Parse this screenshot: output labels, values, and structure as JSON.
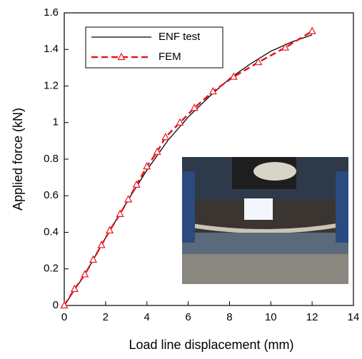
{
  "chart_data": {
    "type": "line",
    "xlabel": "Load line displacement (mm)",
    "ylabel": "Applied force (kN)",
    "xlim": [
      0,
      14
    ],
    "xticks": [
      0,
      2,
      4,
      6,
      8,
      10,
      12,
      14
    ],
    "ylim": [
      0,
      1.6
    ],
    "yticks": [
      0,
      0.2,
      0.4,
      0.6,
      0.8,
      1,
      1.2,
      1.4,
      1.6
    ],
    "legend": "upper left",
    "series": [
      {
        "name": "ENF test",
        "color": "#000000",
        "line_style": "solid",
        "marker": "none",
        "x": [
          0,
          1,
          2,
          3,
          4,
          5,
          6,
          7,
          8,
          9,
          10,
          11,
          12
        ],
        "values": [
          0,
          0.17,
          0.37,
          0.56,
          0.74,
          0.9,
          1.03,
          1.14,
          1.24,
          1.32,
          1.39,
          1.44,
          1.48
        ]
      },
      {
        "name": "FEM",
        "color": "#e8141b",
        "line_style": "dashed",
        "marker": "triangle",
        "x": [
          0,
          0.5,
          1,
          1.4,
          1.8,
          2.2,
          2.7,
          3.1,
          3.5,
          4,
          4.5,
          4.9,
          5.6,
          6.3,
          7.2,
          8.2,
          9.4,
          10.7,
          12
        ],
        "values": [
          0,
          0.09,
          0.17,
          0.25,
          0.33,
          0.41,
          0.5,
          0.58,
          0.66,
          0.76,
          0.84,
          0.92,
          1.0,
          1.08,
          1.17,
          1.25,
          1.33,
          1.41,
          1.5
        ]
      }
    ]
  }
}
